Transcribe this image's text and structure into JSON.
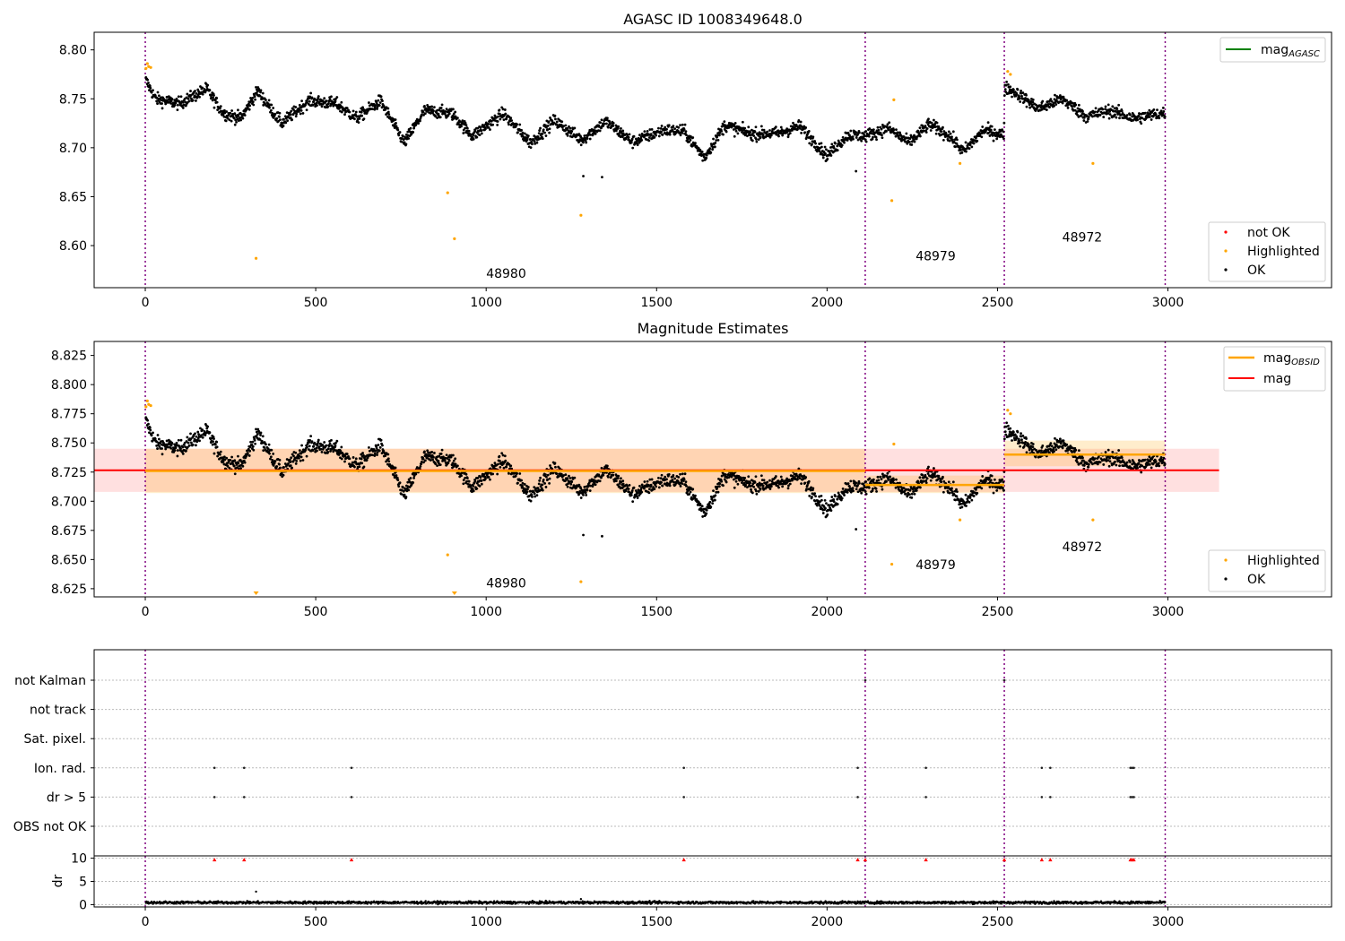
{
  "chart_data": [
    {
      "type": "scatter",
      "title": "AGASC ID 1008349648.0",
      "xlim": [
        -150,
        3480
      ],
      "ylim": [
        8.557,
        8.818
      ],
      "xticks": [
        0,
        500,
        1000,
        1500,
        2000,
        2500,
        3000
      ],
      "yticks": [
        8.6,
        8.65,
        8.7,
        8.75,
        8.8
      ],
      "ytick_labels": [
        "8.60",
        "8.65",
        "8.70",
        "8.75",
        "8.80"
      ],
      "vlines": [
        0,
        2112,
        2520,
        2992
      ],
      "annotations": [
        {
          "text": "48980",
          "x": 1000,
          "y": 8.567
        },
        {
          "text": "48979",
          "x": 2260,
          "y": 8.585
        },
        {
          "text": "48972",
          "x": 2690,
          "y": 8.604
        }
      ],
      "legend_top": {
        "label_main": "mag",
        "label_sub": "AGASC",
        "color": "#008000"
      },
      "legend_bottom": [
        {
          "label": "not OK",
          "color": "#ff0000"
        },
        {
          "label": "Highlighted",
          "color": "#ffa500"
        },
        {
          "label": "OK",
          "color": "#000000"
        }
      ],
      "highlighted_points": [
        [
          2,
          8.781
        ],
        [
          6,
          8.786
        ],
        [
          10,
          8.783
        ],
        [
          16,
          8.782
        ],
        [
          325,
          8.587
        ],
        [
          887,
          8.654
        ],
        [
          907,
          8.607
        ],
        [
          1278,
          8.631
        ],
        [
          2190,
          8.646
        ],
        [
          2196,
          8.749
        ],
        [
          2390,
          8.684
        ],
        [
          2530,
          8.778
        ],
        [
          2538,
          8.775
        ],
        [
          2780,
          8.684
        ]
      ]
    },
    {
      "type": "scatter",
      "title": "Magnitude Estimates",
      "xlim": [
        -150,
        3480
      ],
      "ylim": [
        8.618,
        8.837
      ],
      "xticks": [
        0,
        500,
        1000,
        1500,
        2000,
        2500,
        3000
      ],
      "yticks": [
        8.625,
        8.65,
        8.675,
        8.7,
        8.725,
        8.75,
        8.775,
        8.8,
        8.825
      ],
      "ytick_labels": [
        "8.625",
        "8.650",
        "8.675",
        "8.700",
        "8.725",
        "8.750",
        "8.775",
        "8.800",
        "8.825"
      ],
      "vlines": [
        0,
        2112,
        2520,
        2992
      ],
      "mag_line": {
        "value": 8.7265,
        "band": [
          8.708,
          8.745
        ],
        "x": [
          -150,
          3150
        ],
        "color": "#ff0000"
      },
      "obsid_segments": [
        {
          "x": [
            0,
            2112
          ],
          "value": 8.726,
          "band": [
            8.707,
            8.745
          ]
        },
        {
          "x": [
            2112,
            2520
          ],
          "value": 8.714,
          "band": [
            8.707,
            8.722
          ]
        },
        {
          "x": [
            2520,
            2992
          ],
          "value": 8.74,
          "band": [
            8.73,
            8.752
          ]
        }
      ],
      "annotations": [
        {
          "text": "48980",
          "x": 1000,
          "y": 8.626
        },
        {
          "text": "48979",
          "x": 2260,
          "y": 8.642
        },
        {
          "text": "48972",
          "x": 2690,
          "y": 8.657
        }
      ],
      "legend_top": [
        {
          "label_main": "mag",
          "label_sub": "OBSID",
          "color": "#ffa500"
        },
        {
          "label_main": "mag",
          "label_sub": "",
          "color": "#ff0000"
        }
      ],
      "legend_bottom": [
        {
          "label": "Highlighted",
          "color": "#ffa500"
        },
        {
          "label": "OK",
          "color": "#000000"
        }
      ],
      "highlighted_points": [
        [
          2,
          8.781
        ],
        [
          6,
          8.786
        ],
        [
          10,
          8.783
        ],
        [
          16,
          8.782
        ],
        [
          887,
          8.654
        ],
        [
          1278,
          8.631
        ],
        [
          2190,
          8.646
        ],
        [
          2196,
          8.749
        ],
        [
          2390,
          8.684
        ],
        [
          2530,
          8.778
        ],
        [
          2538,
          8.775
        ],
        [
          2780,
          8.684
        ]
      ],
      "highlighted_markers_at_bottom": [
        325,
        907
      ]
    },
    {
      "type": "scatter",
      "xlim": [
        -150,
        3480
      ],
      "vlines": [
        0,
        2112,
        2520,
        2992
      ],
      "flag_rows": [
        "not Kalman",
        "not track",
        "Sat. pixel.",
        "Ion. rad.",
        "dr > 5",
        "OBS not OK"
      ],
      "flag_points": {
        "not Kalman": [
          2112,
          2520
        ],
        "Ion. rad.": [
          203,
          290,
          605,
          1580,
          2090,
          2290,
          2630,
          2655,
          2890,
          2895,
          2900
        ],
        "dr > 5": [
          203,
          290,
          605,
          1580,
          2090,
          2290,
          2630,
          2655,
          2890,
          2895,
          2900
        ]
      }
    },
    {
      "type": "scatter",
      "xlim": [
        -150,
        3480
      ],
      "ylim": [
        -0.5,
        10.5
      ],
      "ylabel": "dr",
      "xticks": [
        0,
        500,
        1000,
        1500,
        2000,
        2500,
        3000
      ],
      "yticks": [
        0,
        5,
        10
      ],
      "ytick_labels": [
        "0",
        "5",
        "10"
      ],
      "vlines": [
        0,
        2112,
        2520,
        2992
      ],
      "capped_markers_at_10": [
        203,
        290,
        605,
        1580,
        2090,
        2112,
        2290,
        2520,
        2630,
        2655,
        2890,
        2895,
        2900
      ],
      "outliers": [
        [
          325,
          2.8
        ],
        [
          1278,
          1.2
        ]
      ]
    }
  ]
}
